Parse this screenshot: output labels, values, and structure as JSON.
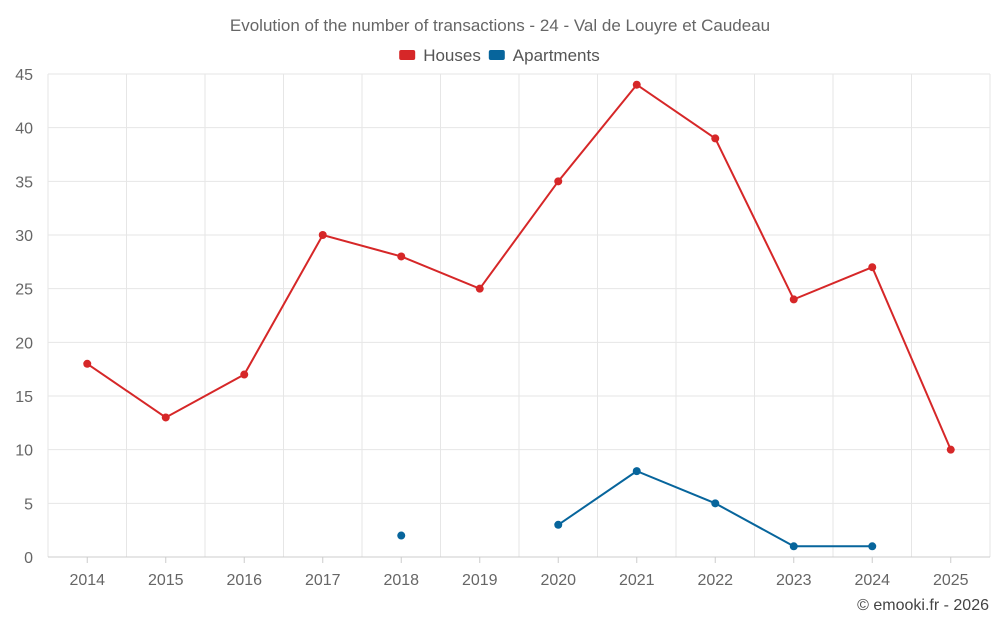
{
  "chart_data": {
    "type": "line",
    "title": "Evolution of the number of transactions - 24 - Val de Louyre et Caudeau",
    "categories": [
      "2014",
      "2015",
      "2016",
      "2017",
      "2018",
      "2019",
      "2020",
      "2021",
      "2022",
      "2023",
      "2024",
      "2025"
    ],
    "series": [
      {
        "name": "Houses",
        "color": "#d62728",
        "values": [
          18,
          13,
          17,
          30,
          28,
          25,
          35,
          44,
          39,
          24,
          27,
          10
        ]
      },
      {
        "name": "Apartments",
        "color": "#07659c",
        "values": [
          null,
          null,
          null,
          null,
          2,
          null,
          3,
          8,
          5,
          1,
          1,
          null
        ]
      }
    ],
    "ylim": [
      0,
      45
    ],
    "yticks": [
      0,
      5,
      10,
      15,
      20,
      25,
      30,
      35,
      40,
      45
    ],
    "legend_position": "top-center",
    "grid": true
  },
  "credit": "© emooki.fr - 2026"
}
